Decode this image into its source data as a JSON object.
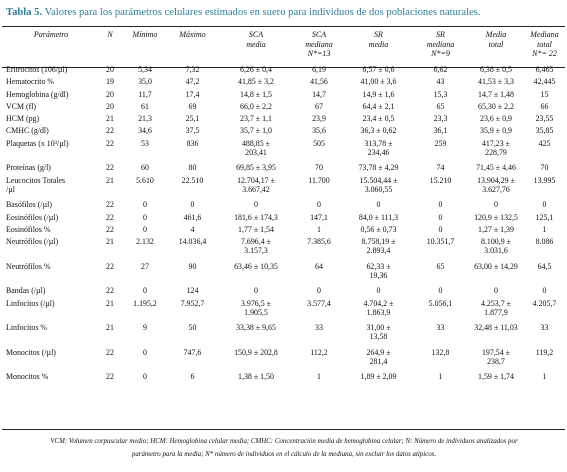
{
  "caption": {
    "label": "Tabla 5.",
    "text": " Valores para los parámetros celulares  estimados en suero para individuos de dos poblaciones naturales."
  },
  "headers": [
    [
      "Parámetro"
    ],
    [
      "N"
    ],
    [
      "Mínimo"
    ],
    [
      "Máximo"
    ],
    [
      "SCA",
      "media"
    ],
    [
      "SCA",
      "mediana",
      "N*=13"
    ],
    [
      "SR",
      "media"
    ],
    [
      "SR",
      "mediana",
      "N*=9"
    ],
    [
      "Media",
      "total"
    ],
    [
      "Mediana",
      "total",
      "N*= 22"
    ]
  ],
  "rows": [
    {
      "h": 1,
      "cells": [
        [
          "Eritrocitos (106/µl)"
        ],
        [
          "20"
        ],
        [
          "5,34"
        ],
        [
          "7,32"
        ],
        [
          "6,26 ± 0,4"
        ],
        [
          "6,19"
        ],
        [
          "6,57 ± 0,6"
        ],
        [
          "6,62"
        ],
        [
          "6,38 ± 0,5"
        ],
        [
          "6,465"
        ]
      ]
    },
    {
      "h": 1,
      "cells": [
        [
          "Hematocrito %"
        ],
        [
          "19"
        ],
        [
          "35,0"
        ],
        [
          "47,2"
        ],
        [
          "41,85 ± 3,2"
        ],
        [
          "41,56"
        ],
        [
          "41,00 ± 3,6"
        ],
        [
          "43"
        ],
        [
          "41,53 ± 3,3"
        ],
        [
          "42,445"
        ]
      ]
    },
    {
      "h": 1,
      "cells": [
        [
          "Hemoglobina (g/dl)"
        ],
        [
          "20"
        ],
        [
          "11,7"
        ],
        [
          "17,4"
        ],
        [
          "14,8 ± 1,5"
        ],
        [
          "14,7"
        ],
        [
          "14,9 ± 1,6"
        ],
        [
          "15,3"
        ],
        [
          "14,7 ± 1,48"
        ],
        [
          "15"
        ]
      ]
    },
    {
      "h": 1,
      "cells": [
        [
          "VCM (fl)"
        ],
        [
          "20"
        ],
        [
          "61"
        ],
        [
          "69"
        ],
        [
          "66,0 ± 2,2"
        ],
        [
          "67"
        ],
        [
          "64,4 ± 2,1"
        ],
        [
          "65"
        ],
        [
          "65,30 ± 2,2"
        ],
        [
          "66"
        ]
      ]
    },
    {
      "h": 1,
      "cells": [
        [
          "HCM (pg)"
        ],
        [
          "21"
        ],
        [
          "21,3"
        ],
        [
          "25,1"
        ],
        [
          "23,7 ± 1,1"
        ],
        [
          "23,9"
        ],
        [
          "23,4 ± 0,5"
        ],
        [
          "23,3"
        ],
        [
          "23,6 ± 0,9"
        ],
        [
          "23,55"
        ]
      ]
    },
    {
      "h": 1,
      "cells": [
        [
          "CMHC (g/dl)"
        ],
        [
          "22"
        ],
        [
          "34,6"
        ],
        [
          "37,5"
        ],
        [
          "35,7 ± 1,0"
        ],
        [
          "35,6"
        ],
        [
          "36,3 ± 0,62"
        ],
        [
          "36,1"
        ],
        [
          "35,9 ± 0,9"
        ],
        [
          "35,85"
        ]
      ]
    },
    {
      "h": 2,
      "cells": [
        [
          "Plaquetas (x 10³/µl)"
        ],
        [
          "22"
        ],
        [
          "53"
        ],
        [
          "836"
        ],
        [
          "488,85 ±",
          "203,41"
        ],
        [
          "505"
        ],
        [
          "313,78 ±",
          "234,46"
        ],
        [
          "259"
        ],
        [
          "417,23 ±",
          "228,79"
        ],
        [
          "425"
        ]
      ]
    },
    {
      "h": 1,
      "cells": [
        [
          "Proteínas (g/l)"
        ],
        [
          "22"
        ],
        [
          "60"
        ],
        [
          "80"
        ],
        [
          "69,85 ± 3,95"
        ],
        [
          "70"
        ],
        [
          "73,78 ± 4,29"
        ],
        [
          "74"
        ],
        [
          "71,45 ± 4,46"
        ],
        [
          "70"
        ]
      ]
    },
    {
      "h": 2,
      "cells": [
        [
          "Leucocitos Totales",
          "/µl"
        ],
        [
          "21"
        ],
        [
          "5.610"
        ],
        [
          "22.510"
        ],
        [
          "12.704,17 ±",
          "3.667,42"
        ],
        [
          "11.700"
        ],
        [
          "15.504,44 ±",
          "3.060,55"
        ],
        [
          "15.210"
        ],
        [
          "13.904,29 ±",
          "3.627,76"
        ],
        [
          "13.995"
        ]
      ]
    },
    {
      "h": 1,
      "cells": [
        [
          "Basófilos (/µl)"
        ],
        [
          "22"
        ],
        [
          "0"
        ],
        [
          "0"
        ],
        [
          "0"
        ],
        [
          "0"
        ],
        [
          "0"
        ],
        [
          "0"
        ],
        [
          "0"
        ],
        [
          "0"
        ]
      ]
    },
    {
      "h": 1,
      "cells": [
        [
          "Eosinófilos (/µl)"
        ],
        [
          "22"
        ],
        [
          "0"
        ],
        [
          "461,6"
        ],
        [
          "181,6 ± 174,3"
        ],
        [
          "147,1"
        ],
        [
          "84,0 ± 111,3"
        ],
        [
          "0"
        ],
        [
          "120,9 ± 132,5"
        ],
        [
          "125,1"
        ]
      ]
    },
    {
      "h": 1,
      "cells": [
        [
          "Eosinófilos %"
        ],
        [
          "22"
        ],
        [
          "0"
        ],
        [
          "4"
        ],
        [
          "1,77 ± 1,54"
        ],
        [
          "1"
        ],
        [
          "0,56 ± 0,73"
        ],
        [
          "0"
        ],
        [
          "1,27 ± 1,39"
        ],
        [
          "1"
        ]
      ]
    },
    {
      "h": 2,
      "cells": [
        [
          "Neutrófilos (/µl)"
        ],
        [
          "21"
        ],
        [
          "2.132"
        ],
        [
          "14.036,4"
        ],
        [
          "7.696,4 ±",
          "3.157,3"
        ],
        [
          "7.385,6"
        ],
        [
          "8.758,19 ±",
          "2.893,4"
        ],
        [
          "10.351,7"
        ],
        [
          "8.100,9 ±",
          "3.031,6"
        ],
        [
          "8.086"
        ]
      ]
    },
    {
      "h": 2,
      "cells": [
        [
          "Neutrófilos %"
        ],
        [
          "22"
        ],
        [
          "27"
        ],
        [
          "90"
        ],
        [
          "63,46 ± 10,35"
        ],
        [
          "64"
        ],
        [
          "62,33 ±",
          "19,36"
        ],
        [
          "65"
        ],
        [
          "63,00 ± 14,29"
        ],
        [
          "64,5"
        ]
      ]
    },
    {
      "h": 1,
      "cells": [
        [
          "Bandas (/µl)"
        ],
        [
          "22"
        ],
        [
          "0"
        ],
        [
          "124"
        ],
        [
          "0"
        ],
        [
          "0"
        ],
        [
          "0"
        ],
        [
          "0"
        ],
        [
          "0"
        ],
        [
          "0"
        ]
      ]
    },
    {
      "h": 2,
      "cells": [
        [
          "Linfocitos (/µl)"
        ],
        [
          "21"
        ],
        [
          "1.195,2"
        ],
        [
          "7.952,7"
        ],
        [
          "3.976,5 ±",
          "1.905,5"
        ],
        [
          "3.577,4"
        ],
        [
          "4.704,2 ±",
          "1.863,9"
        ],
        [
          "5.056,1"
        ],
        [
          "4.253,7 ±",
          "1.877,9"
        ],
        [
          "4.205,7"
        ]
      ]
    },
    {
      "h": 2,
      "cells": [
        [
          "Linfocitos %"
        ],
        [
          "21"
        ],
        [
          "9"
        ],
        [
          "50"
        ],
        [
          "33,38 ± 9,65"
        ],
        [
          "33"
        ],
        [
          "31,00 ±",
          "13,58"
        ],
        [
          "33"
        ],
        [
          "32,48 ± 11,03"
        ],
        [
          "33"
        ]
      ]
    },
    {
      "h": 2,
      "cells": [
        [
          "Monocitos (/µl)"
        ],
        [
          "22"
        ],
        [
          "0"
        ],
        [
          "747,6"
        ],
        [
          "150,9 ± 202,8"
        ],
        [
          "112,2"
        ],
        [
          "264,9 ±",
          "281,4"
        ],
        [
          "132,8"
        ],
        [
          "197,54 ±",
          "238,7"
        ],
        [
          "119,2"
        ]
      ]
    },
    {
      "h": 1,
      "cells": [
        [
          "Monocitos %"
        ],
        [
          "22"
        ],
        [
          "0"
        ],
        [
          "6"
        ],
        [
          "1,38 ± 1,50"
        ],
        [
          "1"
        ],
        [
          "1,89 ± 2,09"
        ],
        [
          "1"
        ],
        [
          "1,59 ± 1,74"
        ],
        [
          "1"
        ]
      ]
    }
  ],
  "footnote": [
    "VCM: Volumen corpuscular medio; HCM: Hemoglobina celular media; CMHC: Concentración media de hemoglobina celular; N: Número de individuos analizados por",
    "parámetro para la media; N* número de individuos en el cálculo de la mediana, sin excluir los datos atípicos."
  ]
}
